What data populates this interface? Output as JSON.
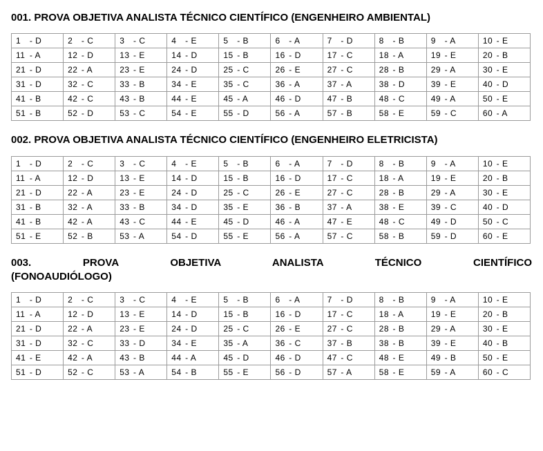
{
  "sections": [
    {
      "title": "001. PROVA OBJETIVA ANALISTA TÉCNICO CIENTÍFICO (ENGENHEIRO AMBIENTAL)",
      "answers": [
        "D",
        "C",
        "C",
        "E",
        "B",
        "A",
        "D",
        "B",
        "A",
        "E",
        "A",
        "D",
        "E",
        "D",
        "B",
        "D",
        "C",
        "A",
        "E",
        "B",
        "D",
        "A",
        "E",
        "D",
        "C",
        "E",
        "C",
        "B",
        "A",
        "E",
        "D",
        "C",
        "B",
        "E",
        "C",
        "A",
        "A",
        "D",
        "E",
        "D",
        "B",
        "C",
        "B",
        "E",
        "A",
        "D",
        "B",
        "C",
        "A",
        "E",
        "B",
        "D",
        "C",
        "E",
        "D",
        "A",
        "B",
        "E",
        "C",
        "A"
      ]
    },
    {
      "title": "002. PROVA OBJETIVA ANALISTA TÉCNICO CIENTÍFICO (ENGENHEIRO ELETRICISTA)",
      "answers": [
        "D",
        "C",
        "C",
        "E",
        "B",
        "A",
        "D",
        "B",
        "A",
        "E",
        "A",
        "D",
        "E",
        "D",
        "B",
        "D",
        "C",
        "A",
        "E",
        "B",
        "D",
        "A",
        "E",
        "D",
        "C",
        "E",
        "C",
        "B",
        "A",
        "E",
        "B",
        "A",
        "B",
        "D",
        "E",
        "B",
        "A",
        "E",
        "C",
        "D",
        "B",
        "A",
        "C",
        "E",
        "D",
        "A",
        "E",
        "C",
        "D",
        "C",
        "E",
        "B",
        "A",
        "D",
        "E",
        "A",
        "C",
        "B",
        "D",
        "E"
      ]
    },
    {
      "title_line1": "003. PROVA OBJETIVA ANALISTA TÉCNICO CIENTÍFICO",
      "title_line2": "(FONOAUDIÓLOGO)",
      "answers": [
        "D",
        "C",
        "C",
        "E",
        "B",
        "A",
        "D",
        "B",
        "A",
        "E",
        "A",
        "D",
        "E",
        "D",
        "B",
        "D",
        "C",
        "A",
        "E",
        "B",
        "D",
        "A",
        "E",
        "D",
        "C",
        "E",
        "C",
        "B",
        "A",
        "E",
        "D",
        "C",
        "D",
        "E",
        "A",
        "C",
        "B",
        "B",
        "E",
        "B",
        "E",
        "A",
        "B",
        "A",
        "D",
        "D",
        "C",
        "E",
        "B",
        "E",
        "D",
        "C",
        "A",
        "B",
        "E",
        "D",
        "A",
        "E",
        "A",
        "C"
      ]
    }
  ],
  "style": {
    "cols": 10,
    "rows": 6,
    "cell_border": "#9a9a9a",
    "title_fontsize": 15,
    "cell_fontsize": 12,
    "background": "#ffffff"
  }
}
